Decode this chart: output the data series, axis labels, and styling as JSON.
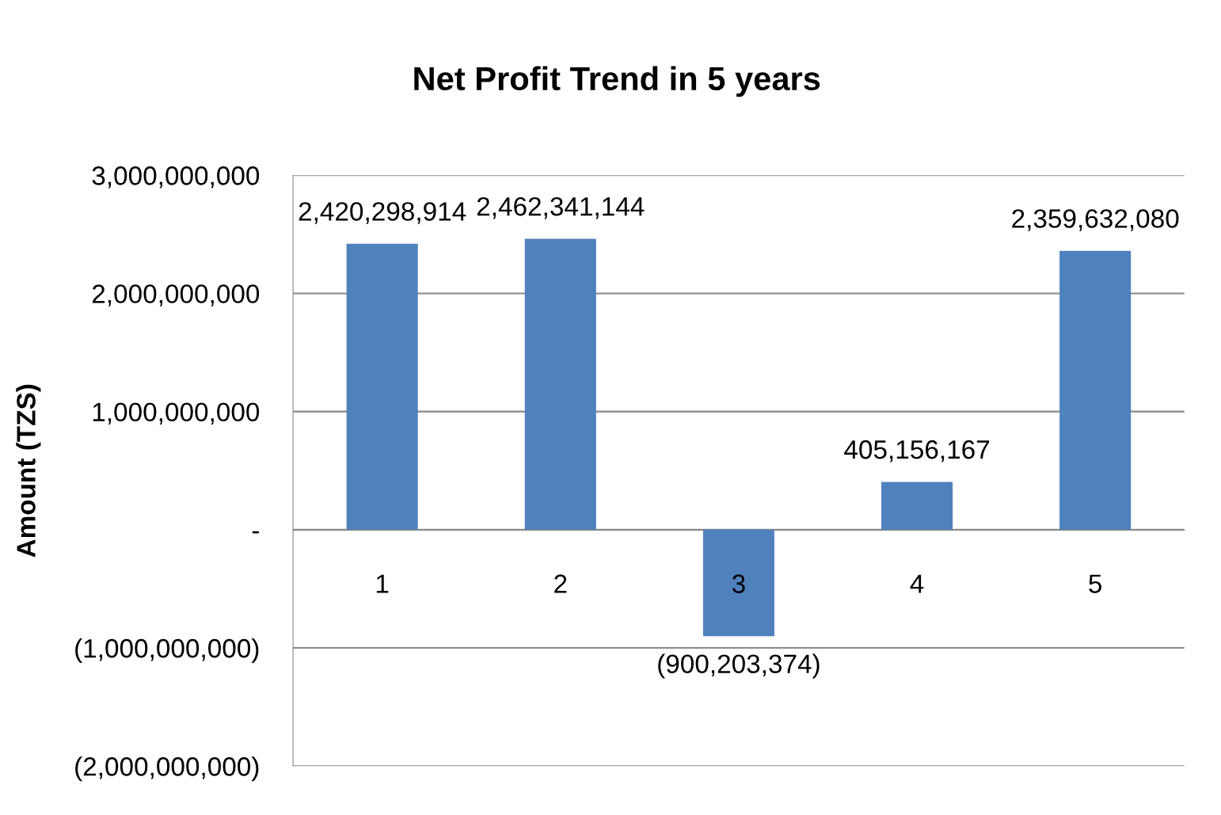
{
  "chart_data": {
    "type": "bar",
    "title": "Net Profit Trend in 5 years",
    "ylabel": "Amount (TZS)",
    "categories": [
      "1",
      "2",
      "3",
      "4",
      "5"
    ],
    "values": [
      2420298914,
      2462341144,
      -900203374,
      405156167,
      2359632080
    ],
    "value_labels": [
      "2,420,298,914",
      "2,462,341,144",
      "(900,203,374)",
      "405,156,167",
      "2,359,632,080"
    ],
    "color": "#4f81bd",
    "ylim": [
      -2000000000,
      3000000000
    ],
    "yticks": [
      {
        "value": -2000000000,
        "label": "(2,000,000,000)"
      },
      {
        "value": -1000000000,
        "label": "(1,000,000,000)"
      },
      {
        "value": 0,
        "label": "-"
      },
      {
        "value": 1000000000,
        "label": "1,000,000,000"
      },
      {
        "value": 2000000000,
        "label": "2,000,000,000"
      },
      {
        "value": 3000000000,
        "label": "3,000,000,000"
      }
    ],
    "grid": "y",
    "legend": false
  }
}
